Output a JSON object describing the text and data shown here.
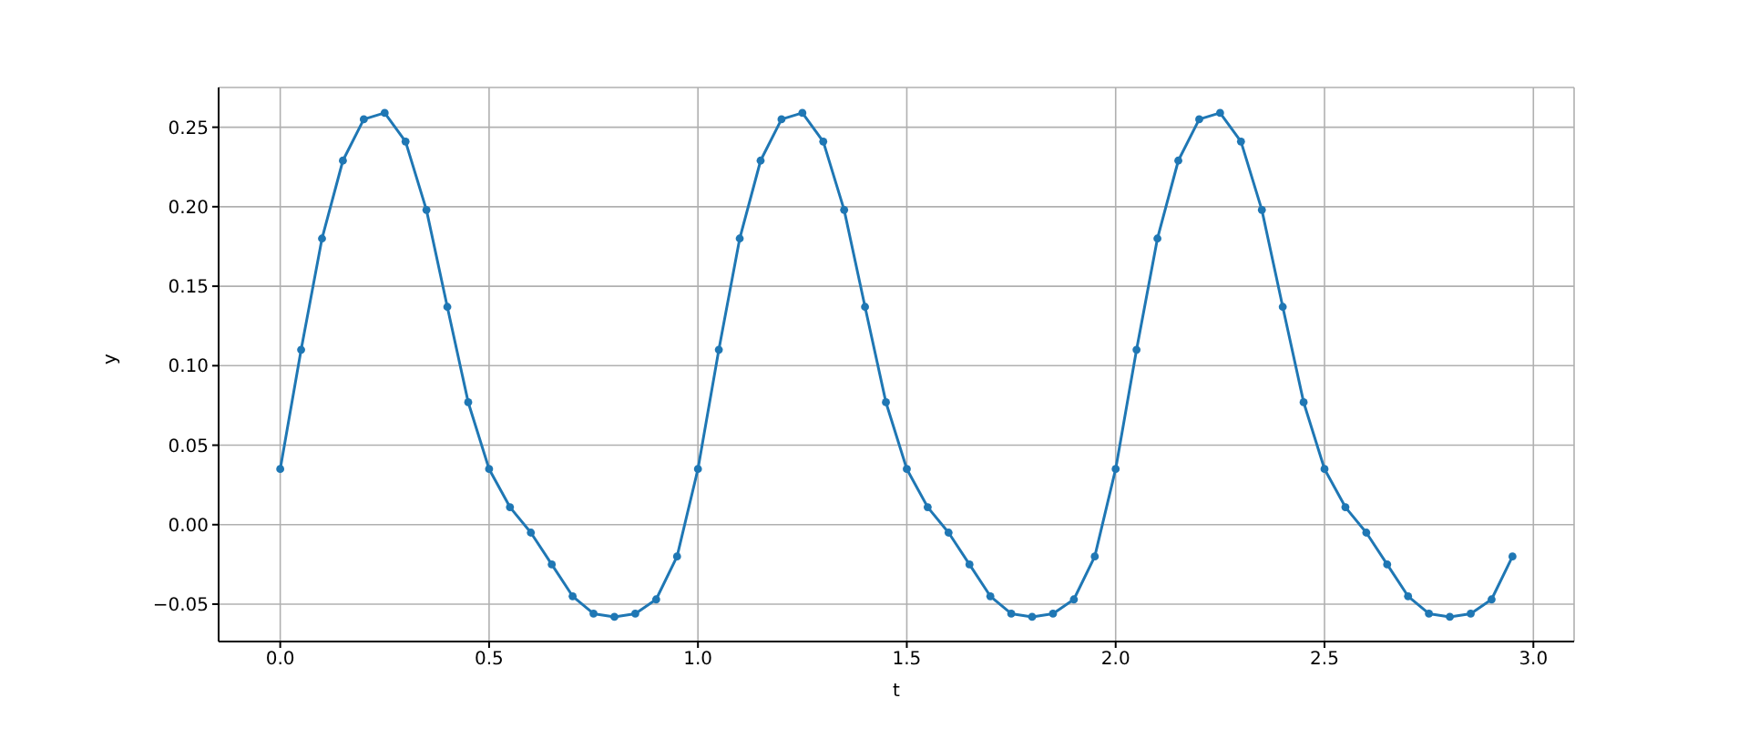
{
  "chart_data": {
    "type": "line",
    "xlabel": "t",
    "ylabel": "y",
    "x": [
      0,
      0.05,
      0.1,
      0.15,
      0.2,
      0.25,
      0.3,
      0.35,
      0.4,
      0.45,
      0.5,
      0.55,
      0.6,
      0.65,
      0.7,
      0.75,
      0.8,
      0.85,
      0.9,
      0.95,
      1,
      1.05,
      1.1,
      1.15,
      1.2,
      1.25,
      1.3,
      1.35,
      1.4,
      1.45,
      1.5,
      1.55,
      1.6,
      1.65,
      1.7,
      1.75,
      1.8,
      1.85,
      1.9,
      1.95,
      2,
      2.05,
      2.1,
      2.15,
      2.2,
      2.25,
      2.3,
      2.35,
      2.4,
      2.45,
      2.5,
      2.55,
      2.6,
      2.65,
      2.7,
      2.75,
      2.8,
      2.85,
      2.9,
      2.95
    ],
    "series": [
      {
        "color": "#1f77b4",
        "values": [
          0.035,
          0.11,
          0.18,
          0.229,
          0.255,
          0.259,
          0.241,
          0.198,
          0.137,
          0.077,
          0.035,
          0.011,
          -0.005,
          -0.025,
          -0.045,
          -0.056,
          -0.058,
          -0.056,
          -0.047,
          -0.02,
          0.035,
          0.11,
          0.18,
          0.229,
          0.255,
          0.259,
          0.241,
          0.198,
          0.137,
          0.077,
          0.035,
          0.011,
          -0.005,
          -0.025,
          -0.045,
          -0.056,
          -0.058,
          -0.056,
          -0.047,
          -0.02,
          0.035,
          0.11,
          0.18,
          0.229,
          0.255,
          0.259,
          0.241,
          0.198,
          0.137,
          0.077,
          0.035,
          0.011,
          -0.005,
          -0.025,
          -0.045,
          -0.056,
          -0.058,
          -0.056,
          -0.047,
          -0.02
        ]
      }
    ],
    "xlim": [
      -0.1475,
      3.0975
    ],
    "xticks": [
      {
        "value": 0,
        "label": "0.0"
      },
      {
        "value": 0.5,
        "label": "0.5"
      },
      {
        "value": 1,
        "label": "1.0"
      },
      {
        "value": 1.5,
        "label": "1.5"
      },
      {
        "value": 2,
        "label": "2.0"
      },
      {
        "value": 2.5,
        "label": "2.5"
      },
      {
        "value": 3,
        "label": "3.0"
      }
    ],
    "ylim": [
      -0.0735,
      0.275
    ],
    "yticks": [
      {
        "value": -0.05,
        "label": "−0.05"
      },
      {
        "value": 0,
        "label": "0.00"
      },
      0.05,
      {
        "value": 0.1,
        "label": "0.10"
      },
      0.15,
      {
        "value": 0.2,
        "label": "0.20"
      },
      0.25
    ],
    "grid": true,
    "marker": "circle",
    "line_style": "solid"
  }
}
